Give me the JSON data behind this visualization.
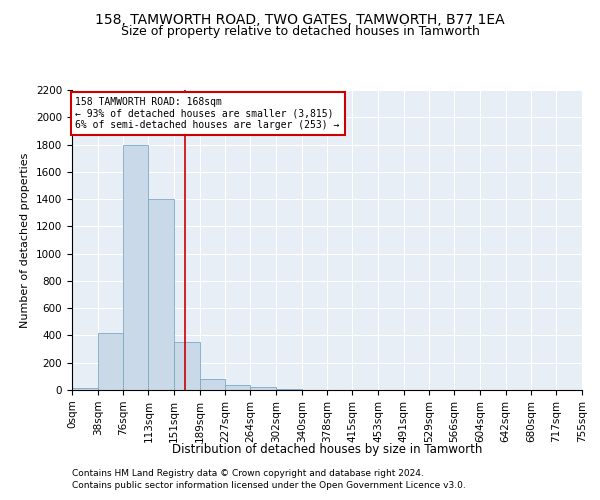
{
  "title1": "158, TAMWORTH ROAD, TWO GATES, TAMWORTH, B77 1EA",
  "title2": "Size of property relative to detached houses in Tamworth",
  "xlabel": "Distribution of detached houses by size in Tamworth",
  "ylabel": "Number of detached properties",
  "footer1": "Contains HM Land Registry data © Crown copyright and database right 2024.",
  "footer2": "Contains public sector information licensed under the Open Government Licence v3.0.",
  "annotation_line1": "158 TAMWORTH ROAD: 168sqm",
  "annotation_line2": "← 93% of detached houses are smaller (3,815)",
  "annotation_line3": "6% of semi-detached houses are larger (253) →",
  "property_size": 168,
  "bin_edges": [
    0,
    38,
    76,
    113,
    151,
    189,
    227,
    264,
    302,
    340,
    378,
    415,
    453,
    491,
    529,
    566,
    604,
    642,
    680,
    717,
    755
  ],
  "bar_heights": [
    15,
    420,
    1800,
    1400,
    350,
    80,
    35,
    20,
    10,
    0,
    0,
    0,
    0,
    0,
    0,
    0,
    0,
    0,
    0,
    0
  ],
  "bar_color": "#c9d9e8",
  "bar_edge_color": "#7aaac8",
  "vline_color": "#cc0000",
  "vline_x": 168,
  "annotation_box_color": "#cc0000",
  "background_color": "#ffffff",
  "plot_background_color": "#e8eef5",
  "ylim": [
    0,
    2200
  ],
  "yticks": [
    0,
    200,
    400,
    600,
    800,
    1000,
    1200,
    1400,
    1600,
    1800,
    2000,
    2200
  ],
  "title1_fontsize": 10,
  "title2_fontsize": 9,
  "xlabel_fontsize": 8.5,
  "ylabel_fontsize": 8,
  "tick_fontsize": 7.5,
  "footer_fontsize": 6.5
}
